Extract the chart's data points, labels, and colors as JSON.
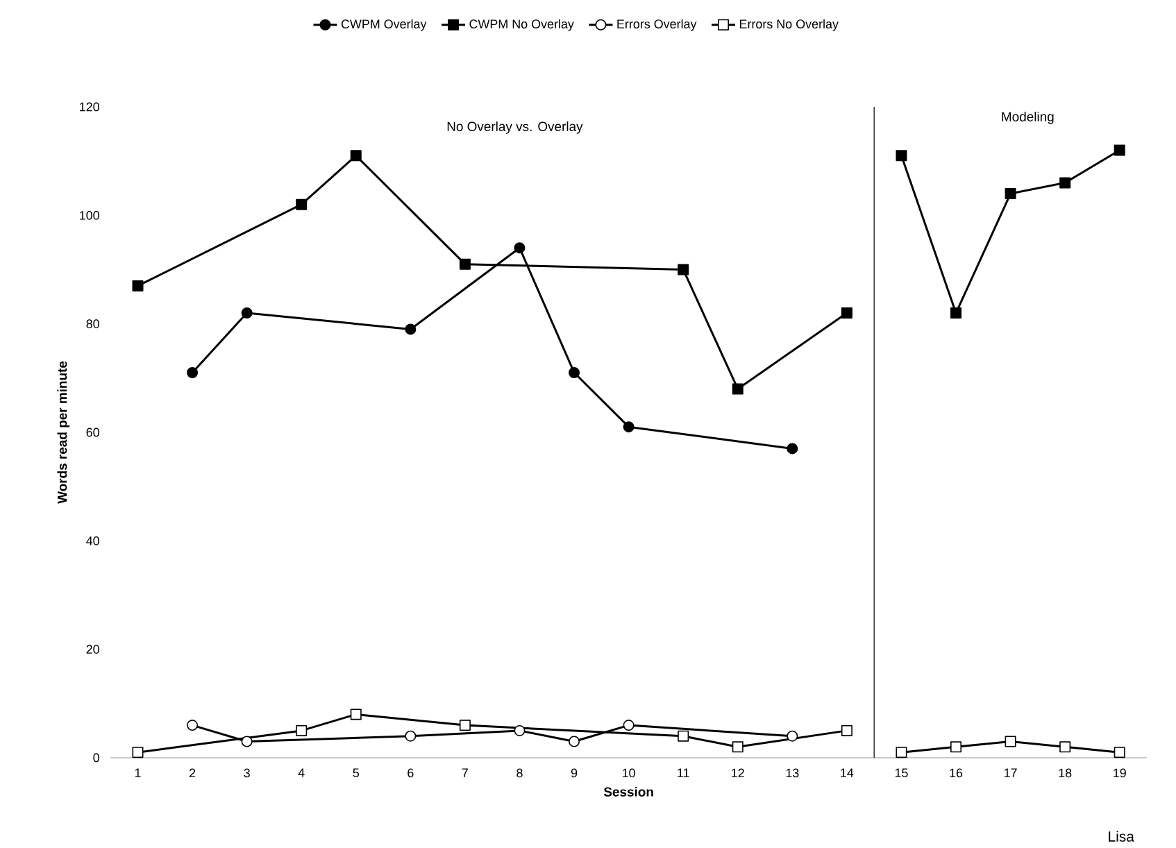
{
  "chart_data": {
    "type": "line",
    "xlabel": "Session",
    "ylabel": "Words read per minute",
    "xlim": [
      0.5,
      19.5
    ],
    "xticks": [
      1,
      2,
      3,
      4,
      5,
      6,
      7,
      8,
      9,
      10,
      11,
      12,
      13,
      14,
      15,
      16,
      17,
      18,
      19
    ],
    "ylim": [
      0,
      120
    ],
    "yticks": [
      0,
      20,
      40,
      60,
      80,
      100,
      120
    ],
    "legend": "top",
    "series": [
      {
        "name": "CWPM Overlay",
        "color": "#000000",
        "marker": "circle",
        "x": [
          2,
          3,
          6,
          8,
          9,
          10,
          13
        ],
        "values": [
          71,
          82,
          79,
          94,
          71,
          61,
          57
        ]
      },
      {
        "name": "CWPM No Overlay",
        "color": "#000000",
        "marker": "square",
        "x": [
          1,
          4,
          5,
          7,
          11,
          12,
          14,
          14.5,
          15,
          16,
          17,
          18,
          19
        ],
        "values": [
          87,
          102,
          111,
          91,
          90,
          68,
          82,
          null,
          111,
          82,
          104,
          106,
          112
        ]
      },
      {
        "name": "Errors Overlay",
        "color": "#000000",
        "marker": "circle",
        "x": [
          2,
          3,
          6,
          8,
          9,
          10,
          13
        ],
        "values": [
          6,
          3,
          4,
          5,
          3,
          6,
          4
        ]
      },
      {
        "name": "Errors No Overlay",
        "color": "#000000",
        "marker": "square",
        "x": [
          1,
          4,
          5,
          7,
          11,
          12,
          14,
          14.5,
          15,
          16,
          17,
          18,
          19
        ],
        "values": [
          1,
          5,
          8,
          6,
          4,
          2,
          5,
          null,
          1,
          2,
          3,
          2,
          1
        ]
      }
    ],
    "ref_lines": [
      {
        "axis": "x",
        "value": 14.5,
        "color": "#000000"
      }
    ],
    "annotations": [
      "No Overlay vs. Overlay",
      "Modeling",
      "Lisa"
    ]
  }
}
